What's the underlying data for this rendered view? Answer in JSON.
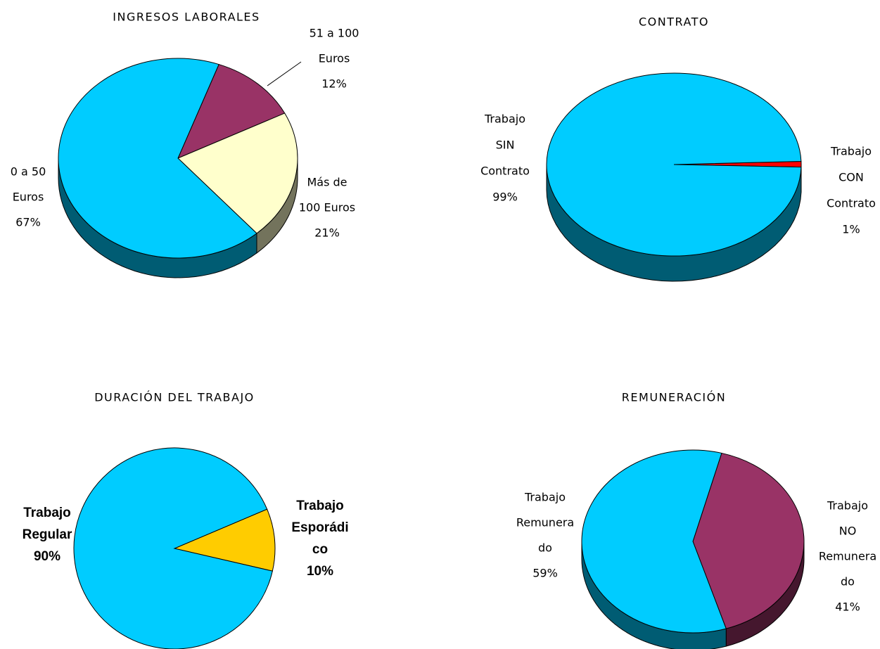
{
  "chart_data": [
    {
      "type": "pie",
      "title": "INGRESOS LABORALES",
      "three_d": true,
      "categories": [
        [
          "51 a 100",
          "Euros"
        ],
        [
          "Más de",
          "100 Euros"
        ],
        [
          "0 a 50",
          "Euros"
        ]
      ],
      "values": [
        12,
        21,
        67
      ],
      "value_labels": [
        "12%",
        "21%",
        "67%"
      ],
      "colors": [
        "#993366",
        "#ffffcc",
        "#00ccff"
      ]
    },
    {
      "type": "pie",
      "title": "CONTRATO",
      "three_d": true,
      "categories": [
        [
          "Trabajo",
          "CON",
          "Contrato"
        ],
        [
          "Trabajo",
          "SIN",
          "Contrato"
        ]
      ],
      "values": [
        1,
        99
      ],
      "value_labels": [
        "1%",
        "99%"
      ],
      "colors": [
        "#ff0000",
        "#00ccff"
      ]
    },
    {
      "type": "pie",
      "title": "DURACIÓN DEL TRABAJO",
      "three_d": false,
      "categories": [
        [
          "Trabajo",
          "Esporádi",
          "co"
        ],
        [
          "Trabajo",
          "Regular"
        ]
      ],
      "values": [
        10,
        90
      ],
      "value_labels": [
        "10%",
        "90%"
      ],
      "colors": [
        "#ffcc00",
        "#00ccff"
      ]
    },
    {
      "type": "pie",
      "title": "REMUNERACIÓN",
      "three_d": true,
      "categories": [
        [
          "Trabajo",
          "NO",
          "Remunera",
          "do"
        ],
        [
          "Trabajo",
          "Remunera",
          "do"
        ]
      ],
      "values": [
        41,
        59
      ],
      "value_labels": [
        "41%",
        "59%"
      ],
      "colors": [
        "#993366",
        "#00ccff"
      ]
    }
  ]
}
